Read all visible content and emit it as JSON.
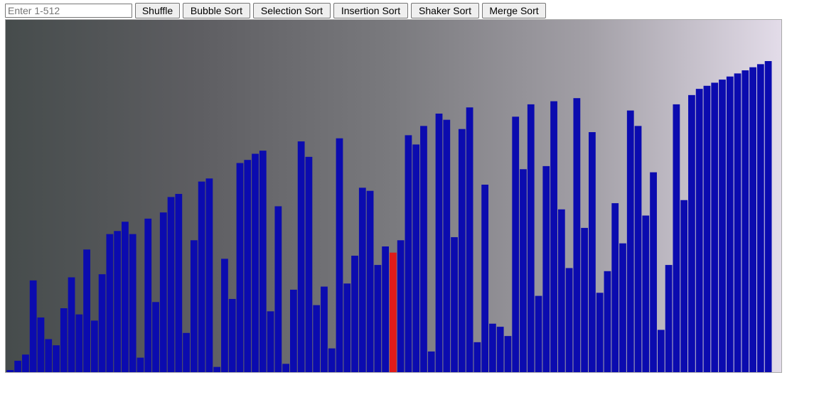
{
  "size_input": {
    "placeholder": "Enter 1-512",
    "value": ""
  },
  "buttons": {
    "shuffle": "Shuffle",
    "bubble_sort": "Bubble Sort",
    "selection_sort": "Selection Sort",
    "insertion_sort": "Insertion Sort",
    "shaker_sort": "Shaker Sort",
    "merge_sort": "Merge Sort"
  },
  "colors": {
    "bar": "#0b0baf",
    "bar_highlight": "#e01b1b",
    "background_gradient": [
      "#464c4c",
      "#5e5e62",
      "#7a7a7e",
      "#a29fa6",
      "#e3dce9"
    ]
  },
  "chart_data": {
    "type": "bar",
    "ylim": [
      0,
      100
    ],
    "highlight_index": 50,
    "values": [
      0,
      3,
      5,
      29,
      17,
      10,
      8,
      20,
      30,
      18,
      39,
      16,
      31,
      44,
      45,
      48,
      44,
      4,
      49,
      22,
      51,
      56,
      57,
      12,
      42,
      61,
      62,
      1,
      36,
      23,
      67,
      68,
      70,
      71,
      19,
      53,
      2,
      26,
      74,
      69,
      21,
      27,
      7,
      75,
      28,
      37,
      59,
      58,
      34,
      40,
      38,
      42,
      76,
      73,
      79,
      6,
      83,
      81,
      43,
      78,
      85,
      9,
      60,
      15,
      14,
      11,
      82,
      65,
      86,
      24,
      66,
      87,
      52,
      33,
      88,
      46,
      77,
      25,
      32,
      54,
      41,
      84,
      79,
      50,
      64,
      13,
      34,
      86,
      55,
      89,
      91,
      92,
      93,
      94,
      95,
      96,
      97,
      98,
      99,
      100
    ]
  }
}
